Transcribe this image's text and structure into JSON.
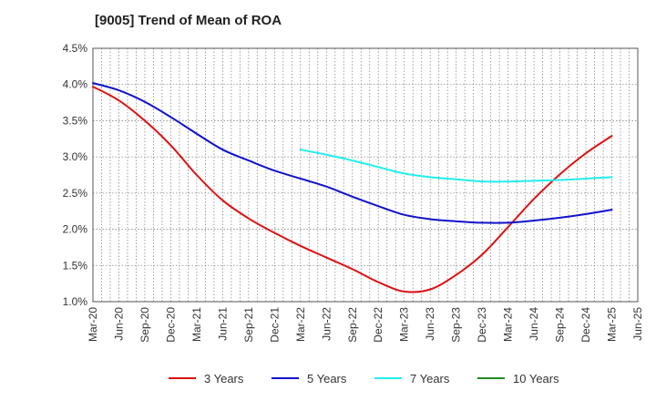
{
  "chart_data": {
    "type": "line",
    "title": "[9005]  Trend of Mean of ROA",
    "xlabel": "",
    "ylabel": "",
    "ylim": [
      1.0,
      4.5
    ],
    "y_ticks": [
      "1.0%",
      "1.5%",
      "2.0%",
      "2.5%",
      "3.0%",
      "3.5%",
      "4.0%",
      "4.5%"
    ],
    "x_ticks": [
      "Mar-20",
      "Jun-20",
      "Sep-20",
      "Dec-20",
      "Mar-21",
      "Jun-21",
      "Sep-21",
      "Dec-21",
      "Mar-22",
      "Jun-22",
      "Sep-22",
      "Dec-22",
      "Mar-23",
      "Jun-23",
      "Sep-23",
      "Dec-23",
      "Mar-24",
      "Jun-24",
      "Sep-24",
      "Dec-24",
      "Mar-25",
      "Jun-25"
    ],
    "grid": true,
    "legend_position": "bottom",
    "series": [
      {
        "name": "3 Years",
        "color": "#dd1111",
        "values": [
          3.97,
          3.78,
          3.5,
          3.16,
          2.75,
          2.4,
          2.15,
          1.95,
          1.77,
          1.61,
          1.45,
          1.27,
          1.14,
          1.17,
          1.37,
          1.65,
          2.03,
          2.42,
          2.76,
          3.05,
          3.29,
          null
        ]
      },
      {
        "name": "5 Years",
        "color": "#1111cc",
        "values": [
          4.02,
          3.92,
          3.76,
          3.55,
          3.32,
          3.1,
          2.95,
          2.81,
          2.7,
          2.59,
          2.45,
          2.32,
          2.2,
          2.14,
          2.11,
          2.09,
          2.09,
          2.12,
          2.16,
          2.21,
          2.27,
          null
        ]
      },
      {
        "name": "7 Years",
        "color": "#22eeee",
        "values": [
          null,
          null,
          null,
          null,
          null,
          null,
          null,
          null,
          3.1,
          3.03,
          2.95,
          2.86,
          2.77,
          2.72,
          2.69,
          2.66,
          2.66,
          2.67,
          2.68,
          2.7,
          2.72,
          null
        ]
      },
      {
        "name": "10 Years",
        "color": "#228822",
        "values": [
          null,
          null,
          null,
          null,
          null,
          null,
          null,
          null,
          null,
          null,
          null,
          null,
          null,
          null,
          null,
          null,
          null,
          null,
          null,
          null,
          null,
          null
        ]
      }
    ]
  }
}
